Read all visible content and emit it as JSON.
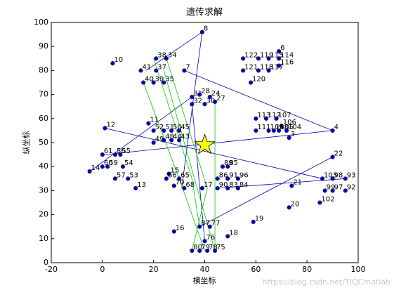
{
  "chart_data": {
    "type": "scatter",
    "title": "遗传求解",
    "x_label": "横坐标",
    "y_label": "纵坐标",
    "xlim": [
      -20,
      100
    ],
    "xticks": [
      -20,
      0,
      20,
      40,
      60,
      80,
      100
    ],
    "ylim": [
      0,
      100
    ],
    "yticks": [
      0,
      10,
      20,
      30,
      40,
      50,
      60,
      70,
      80,
      90,
      100
    ],
    "color": "#0000cc",
    "points": {
      "x": [
        39,
        4,
        69,
        21,
        25,
        32,
        15,
        21,
        16,
        20,
        24,
        55,
        61,
        65,
        69,
        55,
        61,
        65,
        69,
        58,
        35,
        42,
        38,
        35,
        40,
        44,
        1,
        90,
        18,
        20,
        24,
        27,
        30,
        20,
        24,
        27,
        30,
        60,
        64,
        68,
        70,
        60,
        65,
        67,
        69,
        72,
        73,
        90,
        0,
        5,
        7,
        0,
        2,
        8,
        -5,
        5,
        10,
        13,
        47,
        49,
        45,
        49,
        53,
        45,
        49,
        53,
        26,
        25,
        30,
        28,
        32,
        39,
        74,
        73,
        85,
        86,
        90,
        95,
        87,
        90,
        95,
        59,
        49,
        28,
        38,
        42,
        40,
        35,
        38,
        41,
        44
      ],
      "y": [
        96,
        83,
        88,
        85,
        85,
        80,
        80,
        80,
        75,
        75,
        75,
        85,
        85,
        85,
        85,
        80,
        80,
        80,
        82,
        75,
        69,
        69,
        70,
        66,
        66,
        67,
        56,
        55,
        58,
        55,
        55,
        55,
        55,
        50,
        51,
        51,
        51,
        60,
        60,
        60,
        57,
        55,
        55,
        55,
        55,
        55,
        52,
        44,
        45,
        45,
        45,
        40,
        40,
        40,
        38,
        35,
        35,
        31,
        40,
        40,
        35,
        35,
        35,
        31,
        31,
        31,
        37,
        35,
        35,
        32,
        31,
        31,
        32,
        23,
        25,
        35,
        35,
        35,
        30,
        30,
        30,
        17,
        11,
        13,
        15,
        15,
        9,
        5,
        5,
        5,
        5
      ],
      "labels": [
        "8",
        "10",
        "6",
        "38",
        "34",
        "7",
        "41",
        "37",
        "40",
        "39",
        "35",
        "122",
        "119",
        "115",
        "114",
        "121",
        "118",
        "117",
        "116",
        "120",
        "31",
        "24",
        "28",
        "32",
        "30",
        "27",
        "12",
        "4",
        "11",
        "52",
        "51",
        "50",
        "45",
        "49",
        "48",
        "44",
        "43",
        "113",
        "112",
        "107",
        "106",
        "111",
        "109",
        "108",
        "105",
        "104",
        "3",
        "22",
        "61",
        "56",
        "55",
        "60",
        "59",
        "54",
        "14",
        "57",
        "53",
        "13",
        "89",
        "85",
        "86",
        "91",
        "96",
        "90",
        "83",
        "84",
        "15",
        "66",
        "65",
        "70",
        "68",
        "17",
        "21",
        "20",
        "102",
        "103",
        "98",
        "93",
        "99",
        "97",
        "92",
        "19",
        "18",
        "16",
        "87",
        "77",
        "76",
        "80",
        "79",
        "78",
        "75"
      ]
    },
    "star": {
      "x": 40,
      "y": 49,
      "color": "#ffff00"
    },
    "lines": [
      {
        "color": "#0000aa",
        "x": [
          17,
          39,
          31
        ],
        "y": [
          80,
          96,
          31
        ]
      },
      {
        "color": "#0000aa",
        "x": [
          32,
          90,
          1
        ],
        "y": [
          80,
          55,
          45
        ]
      },
      {
        "color": "#0000aa",
        "x": [
          1,
          86
        ],
        "y": [
          56,
          35
        ]
      },
      {
        "color": "#0000aa",
        "x": [
          -5,
          35
        ],
        "y": [
          38,
          69
        ]
      },
      {
        "color": "#0000aa",
        "x": [
          90,
          38
        ],
        "y": [
          44,
          15
        ]
      },
      {
        "color": "#0000aa",
        "x": [
          45,
          95
        ],
        "y": [
          31,
          35
        ]
      },
      {
        "color": "#0000aa",
        "x": [
          40,
          35
        ],
        "y": [
          9,
          66
        ]
      },
      {
        "color": "#00cc00",
        "x": [
          20,
          35,
          38
        ],
        "y": [
          85,
          35,
          15
        ]
      },
      {
        "color": "#00cc00",
        "x": [
          24,
          44,
          44
        ],
        "y": [
          80,
          5,
          67
        ]
      },
      {
        "color": "#00cc00",
        "x": [
          16,
          30,
          40
        ],
        "y": [
          75,
          35,
          5
        ]
      },
      {
        "color": "#00cc00",
        "x": [
          25,
          41,
          35
        ],
        "y": [
          85,
          31,
          5
        ]
      }
    ],
    "watermark": "https://blog.csdn.net/TIQCmatlab"
  }
}
